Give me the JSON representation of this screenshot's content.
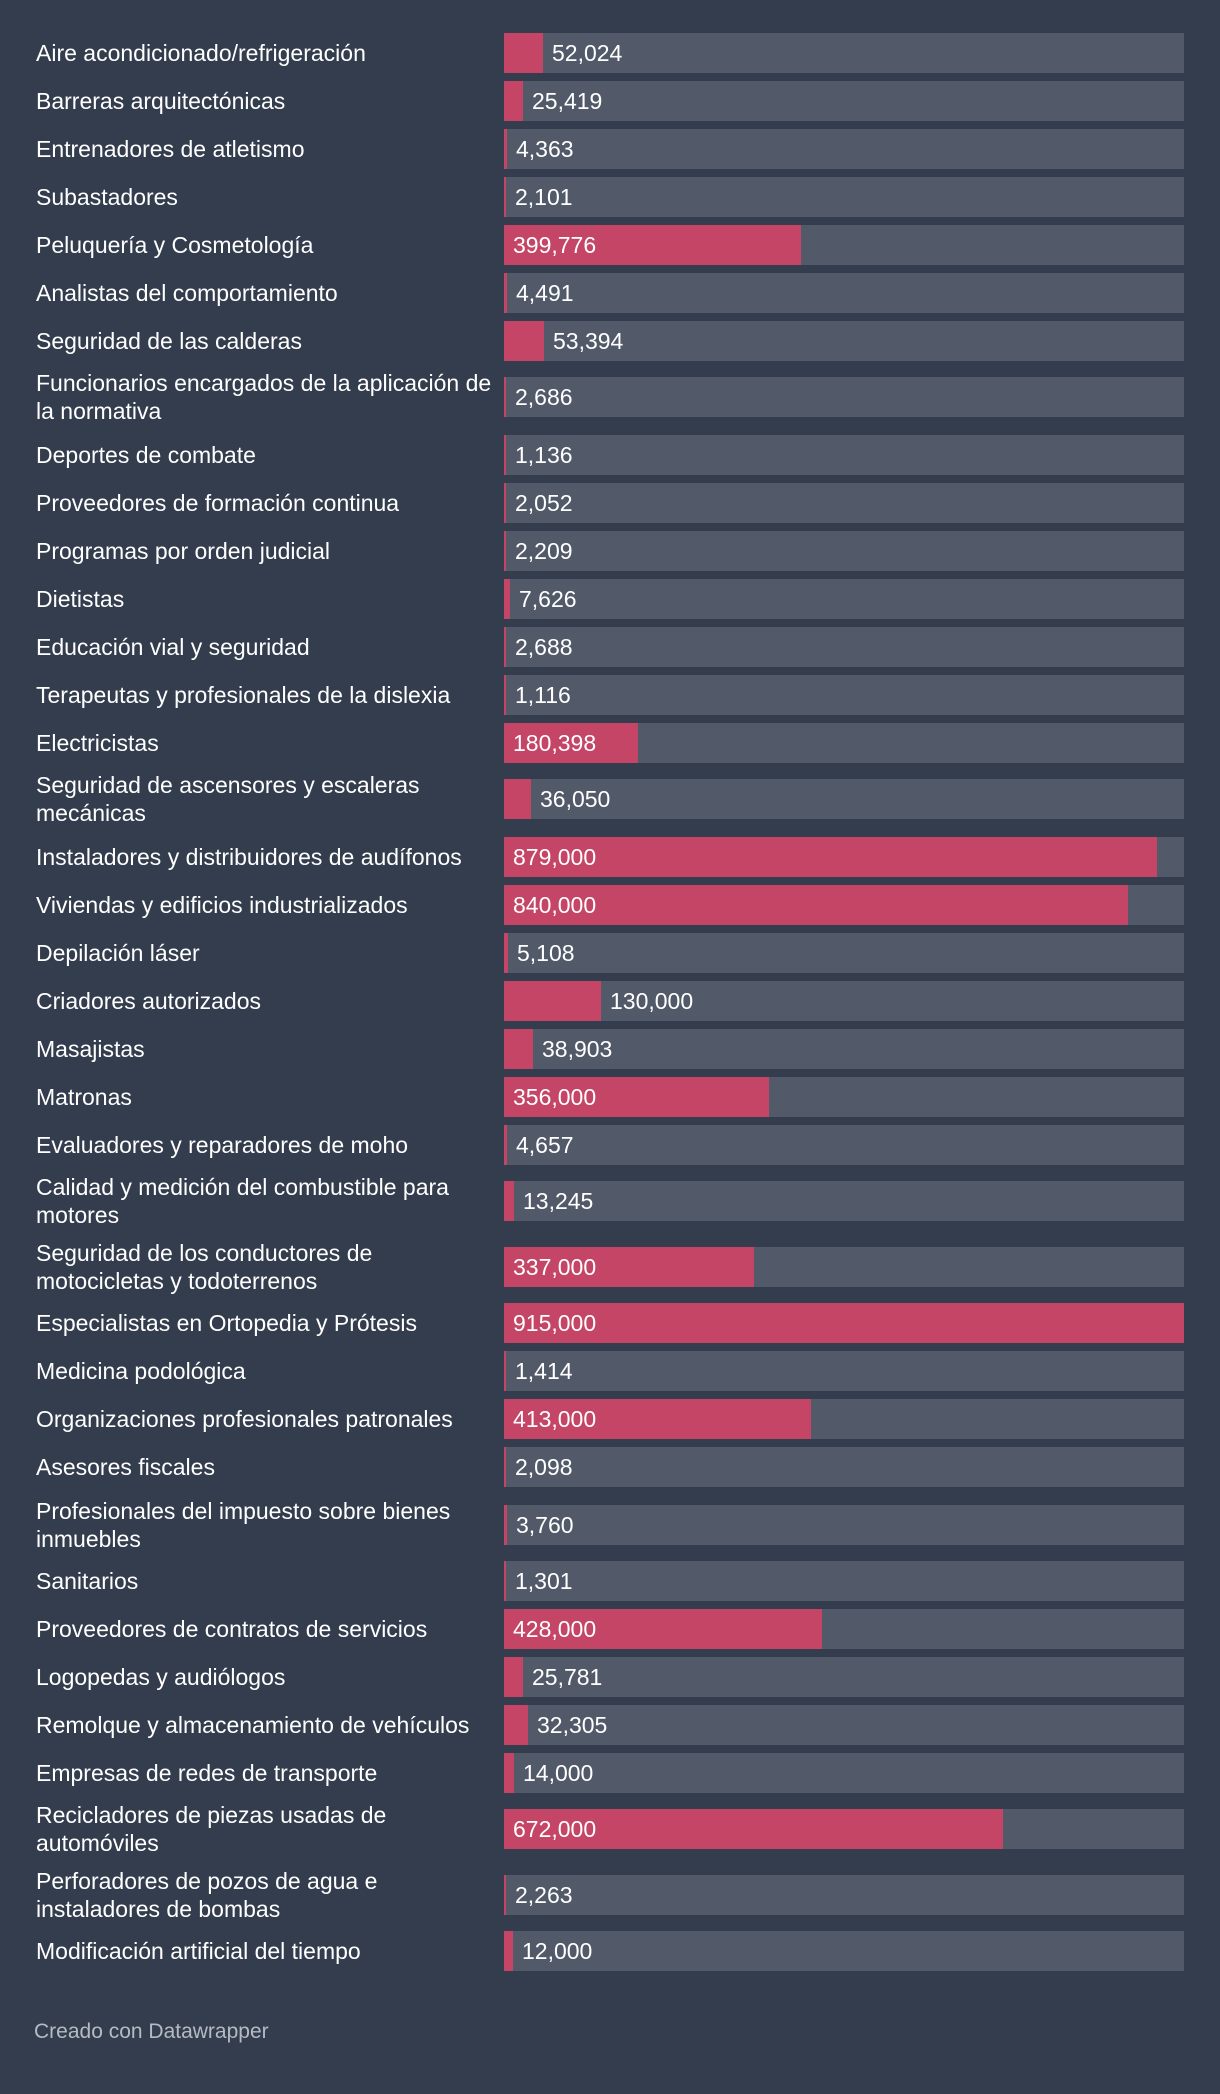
{
  "chart_data": {
    "type": "bar",
    "orientation": "horizontal",
    "categories": [
      "Aire acondicionado/refrigeración",
      "Barreras arquitectónicas",
      "Entrenadores de atletismo",
      "Subastadores",
      "Peluquería y Cosmetología",
      "Analistas del comportamiento",
      "Seguridad de las calderas",
      "Funcionarios encargados de la aplicación de la normativa",
      "Deportes de combate",
      "Proveedores de formación continua",
      "Programas por orden judicial",
      "Dietistas",
      "Educación vial y seguridad",
      "Terapeutas y profesionales de la dislexia",
      "Electricistas",
      "Seguridad de ascensores y escaleras mecánicas",
      "Instaladores y distribuidores de audífonos",
      "Viviendas y edificios industrializados",
      "Depilación láser",
      "Criadores autorizados",
      "Masajistas",
      "Matronas",
      "Evaluadores y reparadores de moho",
      "Calidad y medición del combustible para motores",
      "Seguridad de los conductores de motocicletas y todoterrenos",
      "Especialistas en Ortopedia y Prótesis",
      "Medicina podológica",
      "Organizaciones profesionales patronales",
      "Asesores fiscales",
      "Profesionales del impuesto sobre bienes inmuebles",
      "Sanitarios",
      "Proveedores de contratos de servicios",
      "Logopedas y audiólogos",
      "Remolque y almacenamiento de vehículos",
      "Empresas de redes de transporte",
      "Recicladores de piezas usadas de automóviles",
      "Perforadores de pozos de agua e instaladores de bombas",
      "Modificación artificial del tiempo"
    ],
    "values": [
      52024,
      25419,
      4363,
      2101,
      399776,
      4491,
      53394,
      2686,
      1136,
      2052,
      2209,
      7626,
      2688,
      1116,
      180398,
      36050,
      879000,
      840000,
      5108,
      130000,
      38903,
      356000,
      4657,
      13245,
      337000,
      915000,
      1414,
      413000,
      2098,
      3760,
      1301,
      428000,
      25781,
      32305,
      14000,
      672000,
      2263,
      12000
    ],
    "value_labels": [
      "52,024",
      "25,419",
      "4,363",
      "2,101",
      "399,776",
      "4,491",
      "53,394",
      "2,686",
      "1,136",
      "2,052",
      "2,209",
      "7,626",
      "2,688",
      "1,116",
      "180,398",
      "36,050",
      "879,000",
      "840,000",
      "5,108",
      "130,000",
      "38,903",
      "356,000",
      "4,657",
      "13,245",
      "337,000",
      "915,000",
      "1,414",
      "413,000",
      "2,098",
      "3,760",
      "1,301",
      "428,000",
      "25,781",
      "32,305",
      "14,000",
      "672,000",
      "2,263",
      "12,000"
    ],
    "xlim": [
      0,
      915000
    ],
    "grid": false,
    "legend": "none",
    "colors": {
      "bar": "#c44565",
      "track": "#525a69",
      "background": "#333d4d",
      "text": "#ffffff",
      "footer": "#b5bac3"
    }
  },
  "footer": {
    "text": "Creado con Datawrapper"
  }
}
